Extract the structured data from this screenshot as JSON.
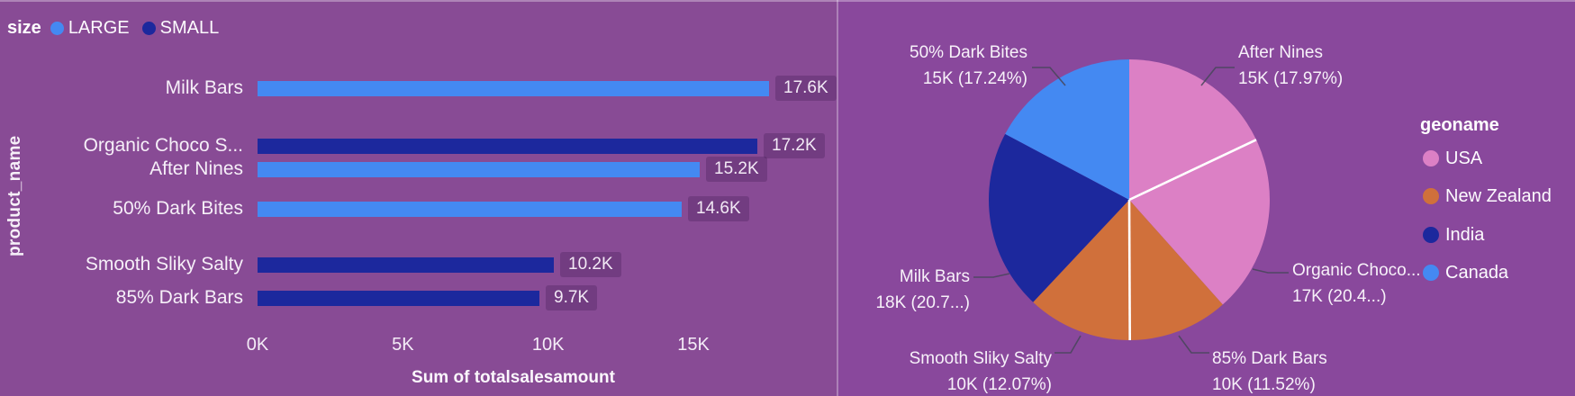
{
  "app": {
    "background_left": "#884B95",
    "background_right": "#89489C",
    "series_color_large": "#4489F2",
    "series_color_small": "#1C289D",
    "color_usa": "#DC80C5",
    "color_new_zealand": "#D0703B",
    "color_india": "#1C289D",
    "color_canada": "#4489F2"
  },
  "chart_data": [
    {
      "type": "bar",
      "orientation": "horizontal",
      "legend_title": "size",
      "legend_position": "top-left",
      "series": [
        {
          "name": "LARGE",
          "color": "#4489F2"
        },
        {
          "name": "SMALL",
          "color": "#1C289D"
        }
      ],
      "categories": [
        "Milk Bars",
        "Organic Choco S...",
        "After Nines",
        "50% Dark Bites",
        "Smooth Sliky Salty",
        "85% Dark Bars"
      ],
      "values": [
        17600,
        17200,
        15200,
        14600,
        10200,
        9700
      ],
      "value_labels": [
        "17.6K",
        "17.2K",
        "15.2K",
        "14.6K",
        "10.2K",
        "9.7K"
      ],
      "bar_series": [
        "LARGE",
        "SMALL",
        "LARGE",
        "LARGE",
        "SMALL",
        "SMALL"
      ],
      "xlabel": "Sum of totalsalesamount",
      "ylabel": "product_name",
      "xlim": [
        0,
        18000
      ],
      "grid": false,
      "x_ticks": [
        {
          "label": "0K",
          "value": 0
        },
        {
          "label": "5K",
          "value": 5000
        },
        {
          "label": "10K",
          "value": 10000
        },
        {
          "label": "15K",
          "value": 15000
        }
      ]
    },
    {
      "type": "pie",
      "legend_title": "geoname",
      "legend_position": "right",
      "legend": [
        {
          "label": "USA",
          "color": "#DC80C5"
        },
        {
          "label": "New Zealand",
          "color": "#D0703B"
        },
        {
          "label": "India",
          "color": "#1C289D"
        },
        {
          "label": "Canada",
          "color": "#4489F2"
        }
      ],
      "slices": [
        {
          "label": "After Nines",
          "value_label": "15K (17.97%)",
          "pct": 17.97,
          "geoname": "USA"
        },
        {
          "label": "Organic Choco...",
          "value_label": "17K (20.4...)",
          "pct": 20.44,
          "geoname": "USA"
        },
        {
          "label": "85% Dark Bars",
          "value_label": "10K (11.52%)",
          "pct": 11.52,
          "geoname": "New Zealand"
        },
        {
          "label": "Smooth Sliky Salty",
          "value_label": "10K (12.07%)",
          "pct": 12.07,
          "geoname": "New Zealand"
        },
        {
          "label": "Milk Bars",
          "value_label": "18K (20.7...)",
          "pct": 20.76,
          "geoname": "India"
        },
        {
          "label": "50% Dark Bites",
          "value_label": "15K (17.24%)",
          "pct": 17.24,
          "geoname": "Canada"
        }
      ]
    }
  ]
}
